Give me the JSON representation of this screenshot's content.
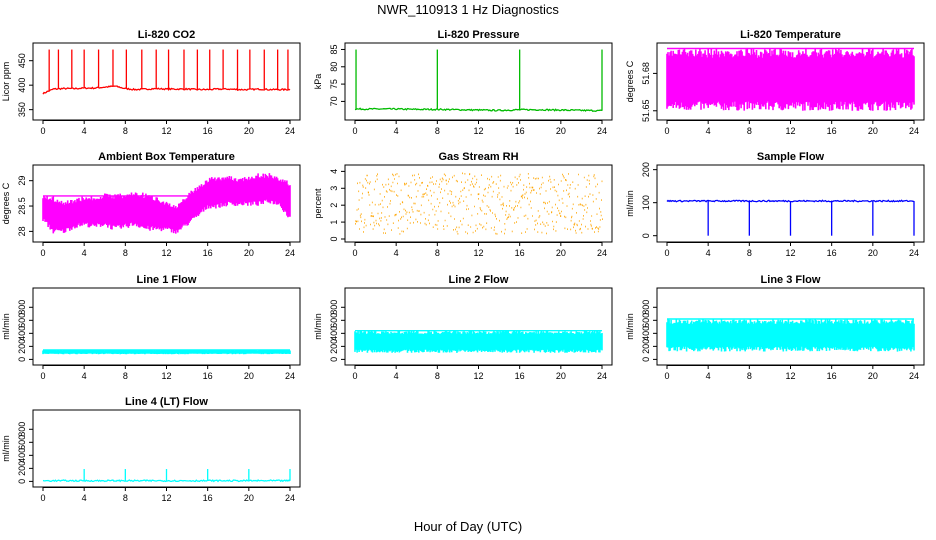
{
  "figure": {
    "title": "NWR_110913 1 Hz Diagnostics",
    "xlabel": "Hour of Day (UTC)"
  },
  "chart_data": [
    {
      "type": "line",
      "title": "Li-820 CO2",
      "ylabel": "Licor ppm",
      "color": "#ff0000",
      "xticks": [
        0,
        4,
        8,
        12,
        16,
        20,
        24
      ],
      "xlim": [
        0,
        24
      ],
      "yticks": [
        350,
        400,
        450
      ],
      "ylim": [
        335,
        480
      ],
      "series": [
        {
          "x": [
            0,
            1,
            2,
            3,
            4,
            5,
            6,
            7,
            8,
            9,
            10,
            11,
            12,
            13,
            14,
            15,
            16,
            17,
            18,
            19,
            20,
            21,
            22,
            23,
            24
          ],
          "y": [
            383,
            392,
            393,
            393,
            394,
            394,
            396,
            398,
            393,
            391,
            392,
            393,
            392,
            392,
            392,
            391,
            391,
            392,
            392,
            391,
            391,
            392,
            391,
            391,
            391
          ]
        }
      ],
      "spikes": [
        0.6,
        1.5,
        2.8,
        4.0,
        5.4,
        6.8,
        8.1,
        9.6,
        11.0,
        12.2,
        13.7,
        15.0,
        16.2,
        17.5,
        18.9,
        20.1,
        21.5,
        22.8,
        23.8
      ]
    },
    {
      "type": "line",
      "title": "Li-820 Pressure",
      "ylabel": "kPa",
      "color": "#00bb00",
      "xticks": [
        0,
        4,
        8,
        12,
        16,
        20,
        24
      ],
      "xlim": [
        0,
        24
      ],
      "yticks": [
        70,
        75,
        80,
        85
      ],
      "ylim": [
        65.5,
        86
      ],
      "series": [
        {
          "x": [
            0,
            2,
            4,
            6,
            8,
            10,
            12,
            14,
            16,
            18,
            20,
            22,
            24
          ],
          "y": [
            67.8,
            67.8,
            67.8,
            67.7,
            67.7,
            67.6,
            67.5,
            67.4,
            67.6,
            67.6,
            67.5,
            67.4,
            67.3
          ]
        }
      ],
      "spikes": [
        0.1,
        8.0,
        16.0,
        24.0
      ]
    },
    {
      "type": "area",
      "title": "Li-820 Temperature",
      "ylabel": "degrees C",
      "color": "#ff00ff",
      "xticks": [
        0,
        4,
        8,
        12,
        16,
        20,
        24
      ],
      "xlim": [
        0,
        24
      ],
      "yticks": [
        51.65,
        51.68
      ],
      "ylim": [
        51.645,
        51.702
      ],
      "series": [
        {
          "x": [
            0,
            24
          ],
          "low": [
            51.65,
            51.65
          ],
          "high": [
            51.7,
            51.7
          ]
        }
      ]
    },
    {
      "type": "area",
      "title": "Ambient Box Temperature",
      "ylabel": "degrees C",
      "color": "#ff00ff",
      "xticks": [
        0,
        4,
        8,
        12,
        16,
        20,
        24
      ],
      "xlim": [
        0,
        24
      ],
      "yticks": [
        28.0,
        28.5,
        29.0
      ],
      "ylim": [
        27.85,
        29.25
      ],
      "series": [
        {
          "x": [
            0,
            1,
            2,
            3,
            4,
            5,
            6,
            7,
            8,
            9,
            10,
            11,
            12,
            13,
            14,
            15,
            16,
            17,
            18,
            19,
            20,
            21,
            22,
            23,
            24
          ],
          "low": [
            28.2,
            27.95,
            27.95,
            28.05,
            28.1,
            28.05,
            28.1,
            28.0,
            28.05,
            28.1,
            28.0,
            28.0,
            28.0,
            27.95,
            28.1,
            28.25,
            28.45,
            28.45,
            28.5,
            28.5,
            28.5,
            28.5,
            28.55,
            28.5,
            28.2
          ],
          "high": [
            28.7,
            28.7,
            28.6,
            28.65,
            28.7,
            28.7,
            28.75,
            28.75,
            28.75,
            28.8,
            28.75,
            28.7,
            28.6,
            28.5,
            28.75,
            28.9,
            29.05,
            29.1,
            29.1,
            29.05,
            29.1,
            29.15,
            29.15,
            29.05,
            29.0
          ]
        }
      ]
    },
    {
      "type": "scatter",
      "title": "Gas Stream RH",
      "ylabel": "percent",
      "color": "#ffa500",
      "xticks": [
        0,
        4,
        8,
        12,
        16,
        20,
        24
      ],
      "xlim": [
        0,
        24
      ],
      "yticks": [
        0,
        1,
        2,
        3,
        4
      ],
      "ylim": [
        0,
        4.2
      ],
      "series": [
        {
          "x": [
            0,
            6,
            12,
            18,
            24
          ],
          "low": [
            0.3,
            0.3,
            0.3,
            0.3,
            0.3
          ],
          "high": [
            3.9,
            3.9,
            3.9,
            3.9,
            3.9
          ],
          "mean": [
            2.2,
            2.2,
            2.2,
            2.2,
            2.2
          ]
        }
      ]
    },
    {
      "type": "line",
      "title": "Sample Flow",
      "ylabel": "ml/min",
      "color": "#0000ff",
      "xticks": [
        0,
        4,
        8,
        12,
        16,
        20,
        24
      ],
      "xlim": [
        0,
        24
      ],
      "yticks": [
        0,
        100,
        200
      ],
      "ylim": [
        -10,
        205
      ],
      "series": [
        {
          "x": [
            0,
            24
          ],
          "y": [
            105,
            105
          ]
        }
      ],
      "dips": [
        4.0,
        8.0,
        12.0,
        16.0,
        20.0,
        24.0
      ]
    },
    {
      "type": "area",
      "title": "Line 1 Flow",
      "ylabel": "ml/min",
      "color": "#00ffff",
      "xticks": [
        0,
        4,
        8,
        12,
        16,
        20,
        24
      ],
      "xlim": [
        0,
        24
      ],
      "yticks": [
        0,
        200,
        400,
        600,
        800
      ],
      "ylim": [
        -40,
        1050
      ],
      "series": [
        {
          "x": [
            0,
            24
          ],
          "low": [
            80,
            80
          ],
          "high": [
            145,
            145
          ]
        }
      ]
    },
    {
      "type": "area",
      "title": "Line 2 Flow",
      "ylabel": "ml/min",
      "color": "#00ffff",
      "xticks": [
        0,
        4,
        8,
        12,
        16,
        20,
        24
      ],
      "xlim": [
        0,
        24
      ],
      "yticks": [
        0,
        200,
        400,
        600,
        800
      ],
      "ylim": [
        -40,
        1050
      ],
      "series": [
        {
          "x": [
            0,
            24
          ],
          "low": [
            100,
            100
          ],
          "high": [
            440,
            440
          ]
        }
      ]
    },
    {
      "type": "area",
      "title": "Line 3 Flow",
      "ylabel": "ml/min",
      "color": "#00ffff",
      "xticks": [
        0,
        4,
        8,
        12,
        16,
        20,
        24
      ],
      "xlim": [
        0,
        24
      ],
      "yticks": [
        0,
        200,
        400,
        600,
        800
      ],
      "ylim": [
        -40,
        1050
      ],
      "series": [
        {
          "x": [
            0,
            24
          ],
          "low": [
            120,
            120
          ],
          "high": [
            620,
            620
          ]
        }
      ]
    },
    {
      "type": "line",
      "title": "Line 4 (LT) Flow",
      "ylabel": "ml/min",
      "color": "#00ffff",
      "xticks": [
        0,
        4,
        8,
        12,
        16,
        20,
        24
      ],
      "xlim": [
        0,
        24
      ],
      "yticks": [
        0,
        200,
        400,
        600,
        800
      ],
      "ylim": [
        -40,
        1050
      ],
      "series": [
        {
          "x": [
            0,
            24
          ],
          "y": [
            10,
            10
          ]
        }
      ],
      "spikes": [
        4.0,
        8.0,
        12.0,
        16.0,
        20.0,
        24.0
      ]
    }
  ]
}
